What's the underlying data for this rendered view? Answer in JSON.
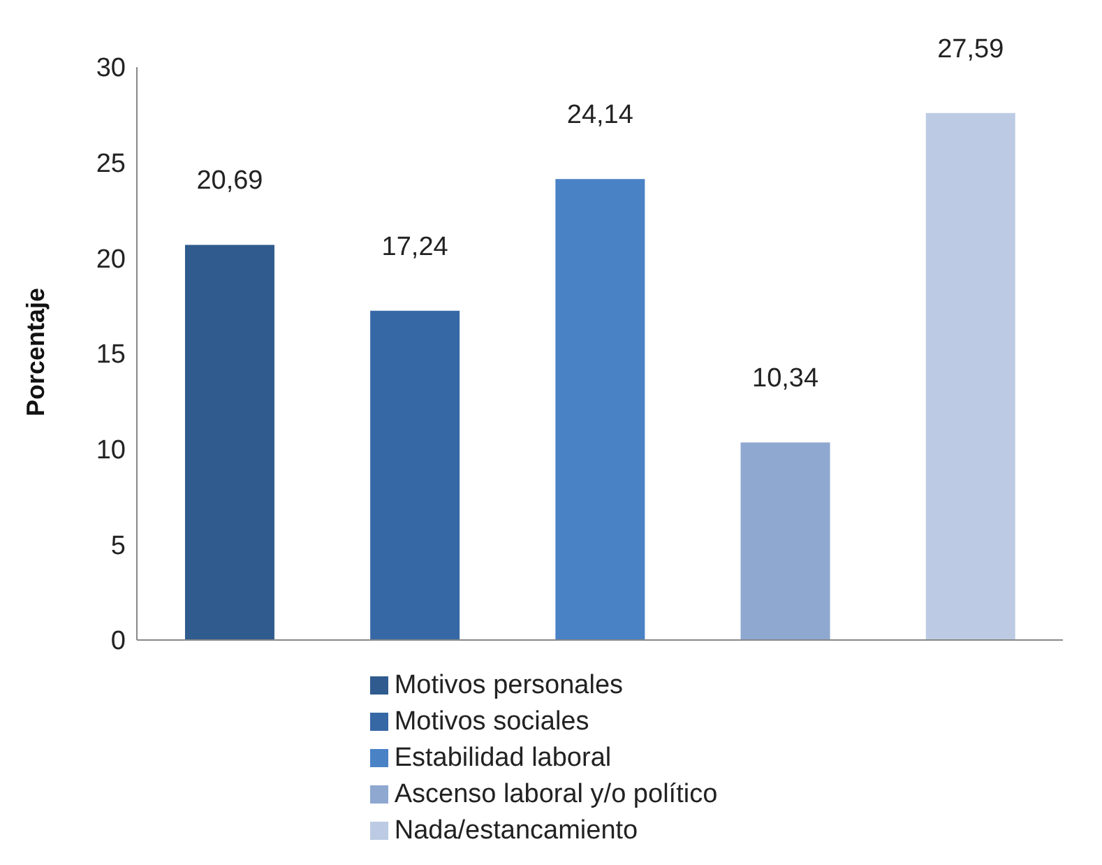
{
  "chart_data": {
    "type": "bar",
    "ylabel": "Porcentaje",
    "categories": [
      null,
      null,
      null,
      null,
      null
    ],
    "series": [
      {
        "name": "Motivos personales",
        "color": "#2f5b8e",
        "values": [
          20.69,
          null,
          null,
          null,
          null
        ],
        "value_labels": [
          "20,69",
          null,
          null,
          null,
          null
        ]
      },
      {
        "name": "Motivos sociales",
        "color": "#3768a6",
        "values": [
          null,
          17.24,
          null,
          null,
          null
        ],
        "value_labels": [
          null,
          "17,24",
          null,
          null,
          null
        ]
      },
      {
        "name": "Estabilidad laboral",
        "color": "#4a82c6",
        "values": [
          null,
          null,
          24.14,
          null,
          null
        ],
        "value_labels": [
          null,
          null,
          "24,14",
          null,
          null
        ]
      },
      {
        "name": "Ascenso laboral y/o político",
        "color": "#8ea8d0",
        "values": [
          null,
          null,
          null,
          10.34,
          null
        ],
        "value_labels": [
          null,
          null,
          null,
          "10,34",
          null
        ]
      },
      {
        "name": "Nada/estancamiento",
        "color": "#bccbe3",
        "values": [
          null,
          null,
          null,
          null,
          27.59
        ],
        "value_labels": [
          null,
          null,
          null,
          null,
          "27,59"
        ]
      }
    ],
    "stacked": true,
    "ylim": [
      0,
      30
    ],
    "yticks": [
      0,
      5,
      10,
      15,
      20,
      25,
      30
    ],
    "tick_labels": "y",
    "legend": "bottom",
    "grid": false
  }
}
